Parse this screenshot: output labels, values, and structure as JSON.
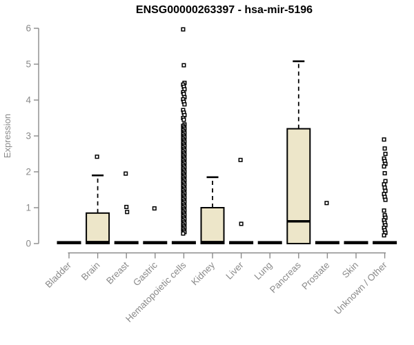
{
  "chart_data": {
    "type": "boxplot",
    "title": "ENSG00000263397 - hsa-mir-5196",
    "ylabel": "Expression",
    "xlabel": "",
    "ylim": [
      0,
      6
    ],
    "yticks": [
      0,
      1,
      2,
      3,
      4,
      5,
      6
    ],
    "grid": false,
    "legend": "none",
    "categories": [
      "Bladder",
      "Brain",
      "Breast",
      "Gastric",
      "Hematopoietic cells",
      "Kidney",
      "Liver",
      "Lung",
      "Pancreas",
      "Prostate",
      "Skin",
      "Unknown / Other"
    ],
    "boxes": [
      {
        "category": "Bladder",
        "q1": 0,
        "median": 0.02,
        "q3": 0.05,
        "whisker_low": 0,
        "whisker_high": 0.05,
        "outliers": []
      },
      {
        "category": "Brain",
        "q1": 0,
        "median": 0.04,
        "q3": 0.85,
        "whisker_low": 0,
        "whisker_high": 1.9,
        "outliers": [
          2.42
        ]
      },
      {
        "category": "Breast",
        "q1": 0,
        "median": 0.02,
        "q3": 0.05,
        "whisker_low": 0,
        "whisker_high": 0.05,
        "outliers": [
          1.95,
          1.02,
          0.88
        ]
      },
      {
        "category": "Gastric",
        "q1": 0,
        "median": 0.02,
        "q3": 0.05,
        "whisker_low": 0,
        "whisker_high": 0.05,
        "outliers": [
          0.98
        ]
      },
      {
        "category": "Hematopoietic cells",
        "q1": 0,
        "median": 0.02,
        "q3": 0.05,
        "whisker_low": 0,
        "whisker_high": 0.05,
        "outliers": [
          5.97,
          4.97,
          4.48,
          4.43,
          4.37,
          4.3,
          4.22,
          4.17,
          4.08,
          4.02,
          3.95,
          3.88,
          3.72,
          3.65,
          3.58,
          3.5,
          3.45,
          3.32,
          3.28,
          3.24,
          3.2,
          3.16,
          3.12,
          3.08,
          3.04,
          3.0,
          2.96,
          2.92,
          2.88,
          2.84,
          2.8,
          2.76,
          2.72,
          2.68,
          2.64,
          2.6,
          2.56,
          2.52,
          2.48,
          2.44,
          2.4,
          2.36,
          2.32,
          2.28,
          2.24,
          2.2,
          2.16,
          2.12,
          2.08,
          2.04,
          2.0,
          1.96,
          1.92,
          1.88,
          1.84,
          1.8,
          1.76,
          1.72,
          1.68,
          1.64,
          1.6,
          1.56,
          1.52,
          1.48,
          1.44,
          1.4,
          1.36,
          1.32,
          1.28,
          1.24,
          1.2,
          1.16,
          1.12,
          1.08,
          1.04,
          1.0,
          0.96,
          0.92,
          0.88,
          0.84,
          0.8,
          0.76,
          0.72,
          0.68,
          0.64,
          0.6,
          0.56,
          0.52,
          0.48,
          0.44,
          0.4,
          0.36,
          0.32,
          0.28
        ]
      },
      {
        "category": "Kidney",
        "q1": 0,
        "median": 0.04,
        "q3": 1.0,
        "whisker_low": 0,
        "whisker_high": 1.85,
        "outliers": []
      },
      {
        "category": "Liver",
        "q1": 0,
        "median": 0.02,
        "q3": 0.05,
        "whisker_low": 0,
        "whisker_high": 0.05,
        "outliers": [
          2.33,
          0.55
        ]
      },
      {
        "category": "Lung",
        "q1": 0,
        "median": 0.02,
        "q3": 0.05,
        "whisker_low": 0,
        "whisker_high": 0.05,
        "outliers": []
      },
      {
        "category": "Pancreas",
        "q1": 0,
        "median": 0.62,
        "q3": 3.2,
        "whisker_low": 0,
        "whisker_high": 5.08,
        "outliers": []
      },
      {
        "category": "Prostate",
        "q1": 0,
        "median": 0.02,
        "q3": 0.05,
        "whisker_low": 0,
        "whisker_high": 0.05,
        "outliers": [
          1.13
        ]
      },
      {
        "category": "Skin",
        "q1": 0,
        "median": 0.02,
        "q3": 0.05,
        "whisker_low": 0,
        "whisker_high": 0.05,
        "outliers": []
      },
      {
        "category": "Unknown / Other",
        "q1": 0,
        "median": 0.02,
        "q3": 0.05,
        "whisker_low": 0,
        "whisker_high": 0.05,
        "outliers": [
          2.9,
          2.65,
          2.5,
          2.37,
          2.3,
          2.22,
          2.15,
          1.96,
          1.74,
          1.65,
          1.56,
          1.47,
          1.38,
          1.3,
          1.22,
          0.92,
          0.79,
          0.72,
          0.65,
          0.58,
          0.51,
          0.44,
          0.37,
          0.3,
          0.23
        ]
      }
    ],
    "colors": {
      "box_fill": "#EDE6C9",
      "box_stroke": "#000000",
      "median": "#000000",
      "whisker": "#000000",
      "outlier_stroke": "#000000",
      "outlier_fill": "#FFFFFF",
      "axis": "#8A8A8A",
      "tick_text": "#8A8A8A",
      "title_text": "#000000",
      "background": "#FFFFFF"
    }
  }
}
